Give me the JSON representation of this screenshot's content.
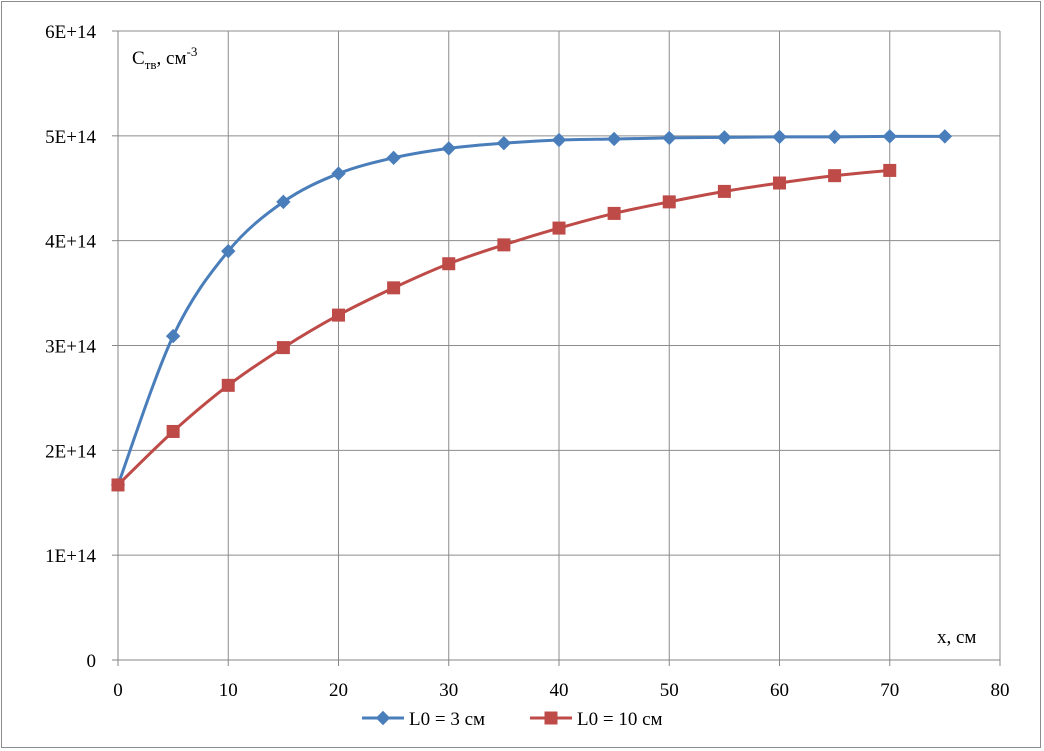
{
  "chart_data": {
    "type": "line",
    "ylabel": {
      "main": "C",
      "sub": "тв",
      "unit": ", см",
      "sup": "-3"
    },
    "xlabel": "x, см",
    "xlim": [
      0,
      80
    ],
    "ylim": [
      0,
      600000000000000.0
    ],
    "x_ticks": [
      "0",
      "10",
      "20",
      "30",
      "40",
      "50",
      "60",
      "70",
      "80"
    ],
    "y_ticks": [
      "0",
      "1E+14",
      "2E+14",
      "3E+14",
      "4E+14",
      "5E+14",
      "6E+14"
    ],
    "x_tick_values": [
      0,
      10,
      20,
      30,
      40,
      50,
      60,
      70,
      80
    ],
    "y_tick_values": [
      0,
      100000000000000.0,
      200000000000000.0,
      300000000000000.0,
      400000000000000.0,
      500000000000000.0,
      600000000000000.0
    ],
    "grid": true,
    "legend_position": "bottom",
    "series": [
      {
        "name": "L0 = 3 см",
        "color": "#4a7ebb",
        "marker": "diamond",
        "x": [
          0,
          5,
          10,
          15,
          20,
          25,
          30,
          35,
          40,
          45,
          50,
          55,
          60,
          65,
          70,
          75
        ],
        "y": [
          167000000000000.0,
          309000000000000.0,
          390000000000000.0,
          437000000000000.0,
          464000000000000.0,
          479000000000000.0,
          488000000000000.0,
          493000000000000.0,
          496000000000000.0,
          497000000000000.0,
          498000000000000.0,
          498500000000000.0,
          499000000000000.0,
          499000000000000.0,
          499500000000000.0,
          499500000000000.0
        ]
      },
      {
        "name": "L0 = 10 см",
        "color": "#be4b48",
        "marker": "square",
        "x": [
          0,
          5,
          10,
          15,
          20,
          25,
          30,
          35,
          40,
          45,
          50,
          55,
          60,
          65,
          70
        ],
        "y": [
          167000000000000.0,
          218000000000000.0,
          262000000000000.0,
          298000000000000.0,
          329000000000000.0,
          355000000000000.0,
          378000000000000.0,
          396000000000000.0,
          412000000000000.0,
          426000000000000.0,
          437000000000000.0,
          447000000000000.0,
          455000000000000.0,
          462000000000000.0,
          467000000000000.0
        ]
      }
    ]
  }
}
